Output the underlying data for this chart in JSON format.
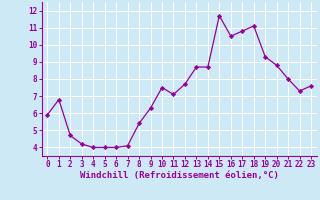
{
  "x": [
    0,
    1,
    2,
    3,
    4,
    5,
    6,
    7,
    8,
    9,
    10,
    11,
    12,
    13,
    14,
    15,
    16,
    17,
    18,
    19,
    20,
    21,
    22,
    23
  ],
  "y": [
    5.9,
    6.8,
    4.7,
    4.2,
    4.0,
    4.0,
    4.0,
    4.1,
    5.4,
    6.3,
    7.5,
    7.1,
    7.7,
    8.7,
    8.7,
    11.7,
    10.5,
    10.8,
    11.1,
    9.3,
    8.8,
    8.0,
    7.3,
    7.6
  ],
  "line_color": "#990099",
  "marker": "D",
  "marker_size": 2.2,
  "bg_color": "#cce9f5",
  "grid_color": "#ffffff",
  "xlabel": "Windchill (Refroidissement éolien,°C)",
  "xlim": [
    -0.5,
    23.5
  ],
  "ylim": [
    3.5,
    12.5
  ],
  "yticks": [
    4,
    5,
    6,
    7,
    8,
    9,
    10,
    11,
    12
  ],
  "xticks": [
    0,
    1,
    2,
    3,
    4,
    5,
    6,
    7,
    8,
    9,
    10,
    11,
    12,
    13,
    14,
    15,
    16,
    17,
    18,
    19,
    20,
    21,
    22,
    23
  ],
  "line_color_spine": "#990099",
  "tick_color": "#990099",
  "label_fontsize": 5.5,
  "xlabel_fontsize": 6.5
}
